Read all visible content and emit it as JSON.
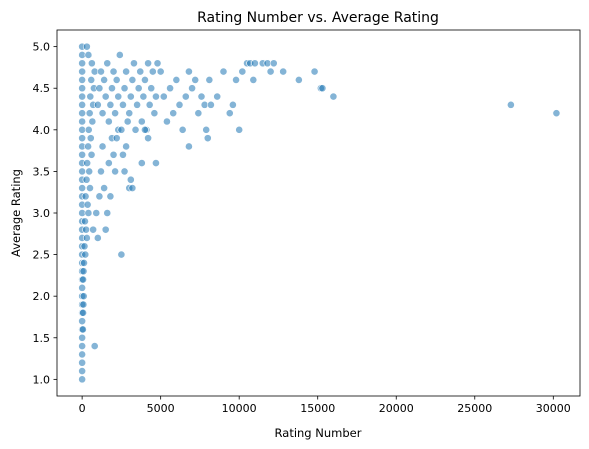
{
  "chart_data": {
    "type": "scatter",
    "title": "Rating Number vs. Average Rating",
    "xlabel": "Rating Number",
    "ylabel": "Average Rating",
    "xlim": [
      -1600,
      31700
    ],
    "ylim": [
      0.8,
      5.2
    ],
    "x_ticks": [
      0,
      5000,
      10000,
      15000,
      20000,
      25000,
      30000
    ],
    "x_tick_labels": [
      "0",
      "5000",
      "10000",
      "15000",
      "20000",
      "25000",
      "30000"
    ],
    "y_ticks": [
      1.0,
      1.5,
      2.0,
      2.5,
      3.0,
      3.5,
      4.0,
      4.5,
      5.0
    ],
    "y_tick_labels": [
      "1.0",
      "1.5",
      "2.0",
      "2.5",
      "3.0",
      "3.5",
      "4.0",
      "4.5",
      "5.0"
    ],
    "grid": false,
    "legend": "none",
    "marker_color": "#1f77b4",
    "marker_opacity": 0.55,
    "points": [
      [
        0,
        1.0
      ],
      [
        0,
        1.1
      ],
      [
        0,
        1.2
      ],
      [
        0,
        1.3
      ],
      [
        0,
        1.4
      ],
      [
        0,
        1.5
      ],
      [
        0,
        1.6
      ],
      [
        0,
        1.7
      ],
      [
        0,
        1.8
      ],
      [
        0,
        1.9
      ],
      [
        0,
        2.0
      ],
      [
        0,
        2.1
      ],
      [
        0,
        2.2
      ],
      [
        0,
        2.3
      ],
      [
        0,
        2.4
      ],
      [
        0,
        2.5
      ],
      [
        0,
        2.6
      ],
      [
        0,
        2.7
      ],
      [
        0,
        2.8
      ],
      [
        0,
        2.9
      ],
      [
        0,
        3.0
      ],
      [
        0,
        3.1
      ],
      [
        0,
        3.2
      ],
      [
        0,
        3.3
      ],
      [
        0,
        3.4
      ],
      [
        0,
        3.5
      ],
      [
        0,
        3.6
      ],
      [
        0,
        3.7
      ],
      [
        0,
        3.8
      ],
      [
        0,
        3.9
      ],
      [
        0,
        4.0
      ],
      [
        0,
        4.1
      ],
      [
        0,
        4.2
      ],
      [
        0,
        4.3
      ],
      [
        0,
        4.4
      ],
      [
        0,
        4.5
      ],
      [
        0,
        4.6
      ],
      [
        0,
        4.7
      ],
      [
        0,
        4.8
      ],
      [
        0,
        4.9
      ],
      [
        0,
        5.0
      ],
      [
        50,
        1.6
      ],
      [
        60,
        1.8
      ],
      [
        80,
        1.9
      ],
      [
        100,
        2.0
      ],
      [
        60,
        2.2
      ],
      [
        90,
        2.3
      ],
      [
        150,
        2.6
      ],
      [
        120,
        2.4
      ],
      [
        200,
        2.5
      ],
      [
        250,
        2.8
      ],
      [
        300,
        2.7
      ],
      [
        180,
        2.9
      ],
      [
        400,
        3.0
      ],
      [
        350,
        3.1
      ],
      [
        220,
        3.2
      ],
      [
        500,
        3.3
      ],
      [
        280,
        3.4
      ],
      [
        450,
        3.5
      ],
      [
        320,
        3.6
      ],
      [
        600,
        3.7
      ],
      [
        380,
        3.8
      ],
      [
        550,
        3.9
      ],
      [
        420,
        4.0
      ],
      [
        650,
        4.1
      ],
      [
        480,
        4.2
      ],
      [
        700,
        4.3
      ],
      [
        520,
        4.4
      ],
      [
        750,
        4.5
      ],
      [
        580,
        4.6
      ],
      [
        800,
        4.7
      ],
      [
        620,
        4.8
      ],
      [
        400,
        4.9
      ],
      [
        300,
        5.0
      ],
      [
        800,
        1.4
      ],
      [
        700,
        2.8
      ],
      [
        900,
        3.0
      ],
      [
        1000,
        2.7
      ],
      [
        1100,
        3.2
      ],
      [
        1200,
        3.5
      ],
      [
        1300,
        3.8
      ],
      [
        1400,
        3.3
      ],
      [
        1500,
        2.8
      ],
      [
        1600,
        3.0
      ],
      [
        1700,
        3.6
      ],
      [
        1800,
        3.2
      ],
      [
        1900,
        3.9
      ],
      [
        2000,
        3.7
      ],
      [
        2100,
        3.5
      ],
      [
        2200,
        3.9
      ],
      [
        2300,
        4.0
      ],
      [
        2500,
        2.5
      ],
      [
        2600,
        3.7
      ],
      [
        2700,
        3.5
      ],
      [
        2800,
        3.8
      ],
      [
        3000,
        3.3
      ],
      [
        3100,
        3.4
      ],
      [
        3200,
        3.3
      ],
      [
        1000,
        4.3
      ],
      [
        1100,
        4.5
      ],
      [
        1200,
        4.7
      ],
      [
        1300,
        4.2
      ],
      [
        1400,
        4.6
      ],
      [
        1500,
        4.4
      ],
      [
        1600,
        4.8
      ],
      [
        1700,
        4.1
      ],
      [
        1800,
        4.3
      ],
      [
        1900,
        4.5
      ],
      [
        2000,
        4.7
      ],
      [
        2100,
        4.2
      ],
      [
        2200,
        4.6
      ],
      [
        2300,
        4.4
      ],
      [
        2400,
        4.9
      ],
      [
        2500,
        4.0
      ],
      [
        2600,
        4.3
      ],
      [
        2700,
        4.5
      ],
      [
        2800,
        4.7
      ],
      [
        2900,
        4.1
      ],
      [
        3000,
        4.2
      ],
      [
        3100,
        4.4
      ],
      [
        3200,
        4.6
      ],
      [
        3300,
        4.8
      ],
      [
        3400,
        4.0
      ],
      [
        3500,
        4.3
      ],
      [
        3600,
        4.5
      ],
      [
        3700,
        4.7
      ],
      [
        3800,
        4.1
      ],
      [
        3900,
        4.4
      ],
      [
        4000,
        4.6
      ],
      [
        4100,
        4.0
      ],
      [
        4200,
        4.8
      ],
      [
        4300,
        4.3
      ],
      [
        4400,
        4.5
      ],
      [
        4500,
        4.7
      ],
      [
        4600,
        4.2
      ],
      [
        4700,
        4.4
      ],
      [
        4800,
        4.8
      ],
      [
        5000,
        4.7
      ],
      [
        5200,
        4.4
      ],
      [
        5400,
        4.1
      ],
      [
        5600,
        4.5
      ],
      [
        5800,
        4.2
      ],
      [
        6000,
        4.6
      ],
      [
        6200,
        4.3
      ],
      [
        6400,
        4.0
      ],
      [
        6600,
        4.4
      ],
      [
        6800,
        4.7
      ],
      [
        7000,
        4.5
      ],
      [
        7200,
        4.6
      ],
      [
        7400,
        4.2
      ],
      [
        7600,
        4.4
      ],
      [
        3800,
        3.6
      ],
      [
        4000,
        4.0
      ],
      [
        4200,
        3.9
      ],
      [
        4700,
        3.6
      ],
      [
        6800,
        3.8
      ],
      [
        7900,
        4.0
      ],
      [
        8000,
        3.9
      ],
      [
        7800,
        4.3
      ],
      [
        8100,
        4.6
      ],
      [
        8200,
        4.3
      ],
      [
        8600,
        4.4
      ],
      [
        9000,
        4.7
      ],
      [
        9400,
        4.2
      ],
      [
        9600,
        4.3
      ],
      [
        9800,
        4.6
      ],
      [
        10000,
        4.0
      ],
      [
        10200,
        4.7
      ],
      [
        10500,
        4.8
      ],
      [
        10700,
        4.8
      ],
      [
        10900,
        4.6
      ],
      [
        11000,
        4.8
      ],
      [
        11500,
        4.8
      ],
      [
        11800,
        4.8
      ],
      [
        12000,
        4.7
      ],
      [
        12200,
        4.8
      ],
      [
        12800,
        4.7
      ],
      [
        13800,
        4.6
      ],
      [
        14800,
        4.7
      ],
      [
        15200,
        4.5
      ],
      [
        15300,
        4.5
      ],
      [
        16000,
        4.4
      ],
      [
        27300,
        4.3
      ],
      [
        30200,
        4.2
      ]
    ]
  }
}
